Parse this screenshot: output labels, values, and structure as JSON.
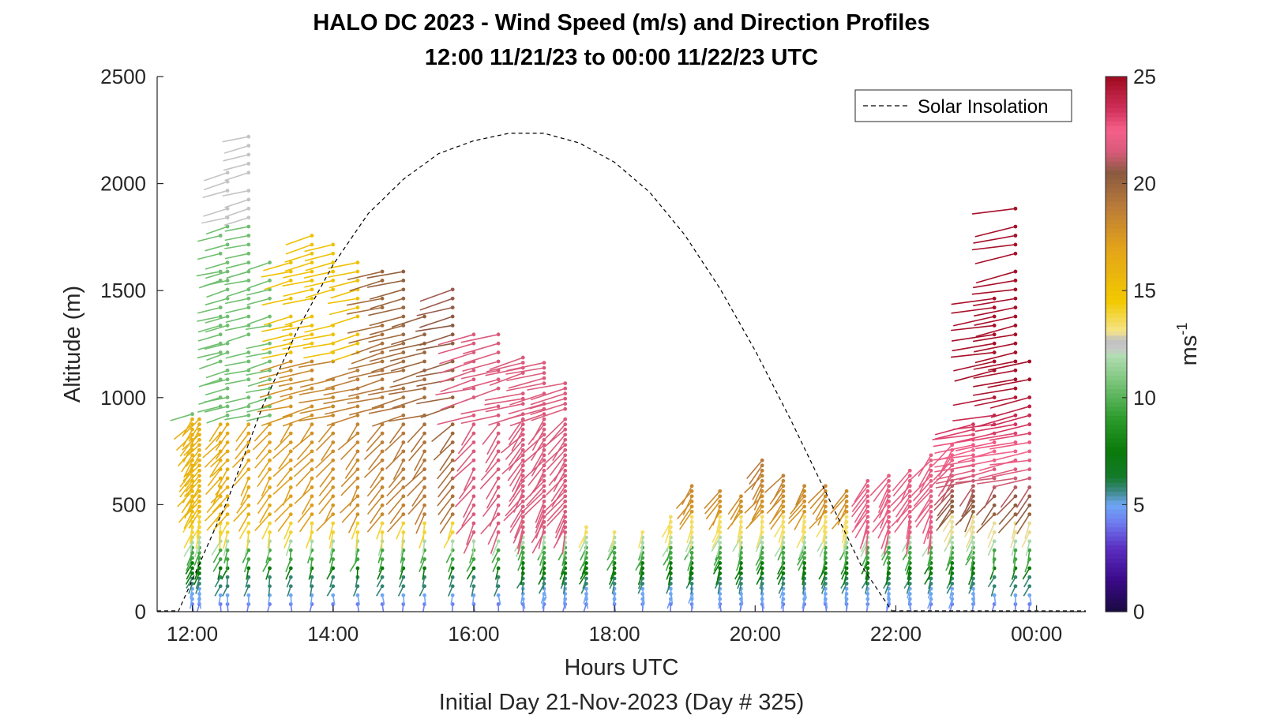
{
  "chart_data": {
    "type": "wind-barb-profile",
    "title": "HALO DC 2023 - Wind Speed (m/s) and Direction Profiles",
    "subtitle": "12:00 11/21/23 to 00:00 11/22/23  UTC",
    "xlabel": "Hours UTC",
    "xlabel2": "Initial Day 21-Nov-2023 (Day # 325)",
    "ylabel": "Altitude (m)",
    "xlim_hours": [
      11.5,
      24.7
    ],
    "ylim": [
      0,
      2500
    ],
    "x_ticks": [
      {
        "value": 12,
        "label": "12:00"
      },
      {
        "value": 14,
        "label": "14:00"
      },
      {
        "value": 16,
        "label": "16:00"
      },
      {
        "value": 18,
        "label": "18:00"
      },
      {
        "value": 20,
        "label": "20:00"
      },
      {
        "value": 22,
        "label": "22:00"
      },
      {
        "value": 24,
        "label": "00:00"
      }
    ],
    "y_ticks": [
      {
        "value": 0,
        "label": "0"
      },
      {
        "value": 500,
        "label": "500"
      },
      {
        "value": 1000,
        "label": "1000"
      },
      {
        "value": 1500,
        "label": "1500"
      },
      {
        "value": 2000,
        "label": "2000"
      },
      {
        "value": 2500,
        "label": "2500"
      }
    ],
    "legend": {
      "entries": [
        {
          "label": "Solar Insolation",
          "style": "dashed",
          "color": "#000000"
        }
      ],
      "location": "top-right"
    },
    "colorbar": {
      "range": [
        0,
        25
      ],
      "ticks": [
        {
          "value": 0,
          "label": "0"
        },
        {
          "value": 5,
          "label": "5"
        },
        {
          "value": 10,
          "label": "10"
        },
        {
          "value": 15,
          "label": "15"
        },
        {
          "value": 20,
          "label": "20"
        },
        {
          "value": 25,
          "label": "25"
        }
      ],
      "label_base": "ms",
      "label_exp": "-1",
      "stops": [
        {
          "v": 0,
          "c": "#1a0a40"
        },
        {
          "v": 1.5,
          "c": "#3a0a8a"
        },
        {
          "v": 3,
          "c": "#5b2fc2"
        },
        {
          "v": 4.2,
          "c": "#6f7ef0"
        },
        {
          "v": 5,
          "c": "#6fa6f5"
        },
        {
          "v": 5.6,
          "c": "#3f8a8a"
        },
        {
          "v": 6.3,
          "c": "#137a2a"
        },
        {
          "v": 7.5,
          "c": "#0a7a0a"
        },
        {
          "v": 9,
          "c": "#2a9a2a"
        },
        {
          "v": 10.5,
          "c": "#6fbf6f"
        },
        {
          "v": 12,
          "c": "#b3ddb3"
        },
        {
          "v": 12.3,
          "c": "#c8c8c8"
        },
        {
          "v": 12.7,
          "c": "#c0c0c0"
        },
        {
          "v": 13.1,
          "c": "#f5e58a"
        },
        {
          "v": 14.5,
          "c": "#f2c900"
        },
        {
          "v": 17,
          "c": "#e3a31a"
        },
        {
          "v": 19,
          "c": "#b87a3a"
        },
        {
          "v": 20.5,
          "c": "#8a5a40"
        },
        {
          "v": 21.5,
          "c": "#d85a7a"
        },
        {
          "v": 22.5,
          "c": "#f5608a"
        },
        {
          "v": 23.5,
          "c": "#d0305a"
        },
        {
          "v": 25,
          "c": "#a00a20"
        }
      ]
    },
    "solar_insolation_curve": {
      "style": "dashed",
      "points": [
        [
          11.8,
          0
        ],
        [
          12.5,
          520
        ],
        [
          13.0,
          960
        ],
        [
          13.5,
          1320
        ],
        [
          14.0,
          1620
        ],
        [
          14.5,
          1860
        ],
        [
          15.0,
          2020
        ],
        [
          15.5,
          2140
        ],
        [
          16.0,
          2200
        ],
        [
          16.5,
          2235
        ],
        [
          17.0,
          2235
        ],
        [
          17.5,
          2190
        ],
        [
          18.0,
          2100
        ],
        [
          18.5,
          1960
        ],
        [
          19.0,
          1760
        ],
        [
          19.5,
          1510
        ],
        [
          20.0,
          1220
        ],
        [
          20.5,
          900
        ],
        [
          21.0,
          560
        ],
        [
          21.5,
          220
        ],
        [
          21.95,
          0
        ]
      ]
    },
    "profiles_note": "Wind barb samples per profile: [hour, top_alt_m]; barb color = wind speed (m/s)",
    "profiles": [
      [
        12.0,
        940
      ],
      [
        12.1,
        900
      ],
      [
        12.4,
        1780
      ],
      [
        12.5,
        2120
      ],
      [
        12.8,
        2230
      ],
      [
        13.1,
        1700
      ],
      [
        13.4,
        1710
      ],
      [
        13.7,
        1780
      ],
      [
        14.0,
        1740
      ],
      [
        14.35,
        1650
      ],
      [
        14.7,
        1600
      ],
      [
        15.0,
        1610
      ],
      [
        15.3,
        1420
      ],
      [
        15.7,
        1530
      ],
      [
        16.0,
        1370
      ],
      [
        16.35,
        1320
      ],
      [
        16.7,
        1200
      ],
      [
        17.0,
        1180
      ],
      [
        17.3,
        1100
      ],
      [
        17.6,
        400
      ],
      [
        18.0,
        390
      ],
      [
        18.4,
        380
      ],
      [
        18.8,
        460
      ],
      [
        19.1,
        600
      ],
      [
        19.5,
        580
      ],
      [
        19.8,
        540
      ],
      [
        20.1,
        730
      ],
      [
        20.4,
        650
      ],
      [
        20.7,
        610
      ],
      [
        21.0,
        600
      ],
      [
        21.3,
        580
      ],
      [
        21.6,
        620
      ],
      [
        21.9,
        640
      ],
      [
        22.2,
        670
      ],
      [
        22.5,
        740
      ],
      [
        22.8,
        800
      ],
      [
        23.1,
        880
      ],
      [
        23.4,
        1480
      ],
      [
        23.7,
        1890
      ],
      [
        23.9,
        1220
      ]
    ]
  }
}
